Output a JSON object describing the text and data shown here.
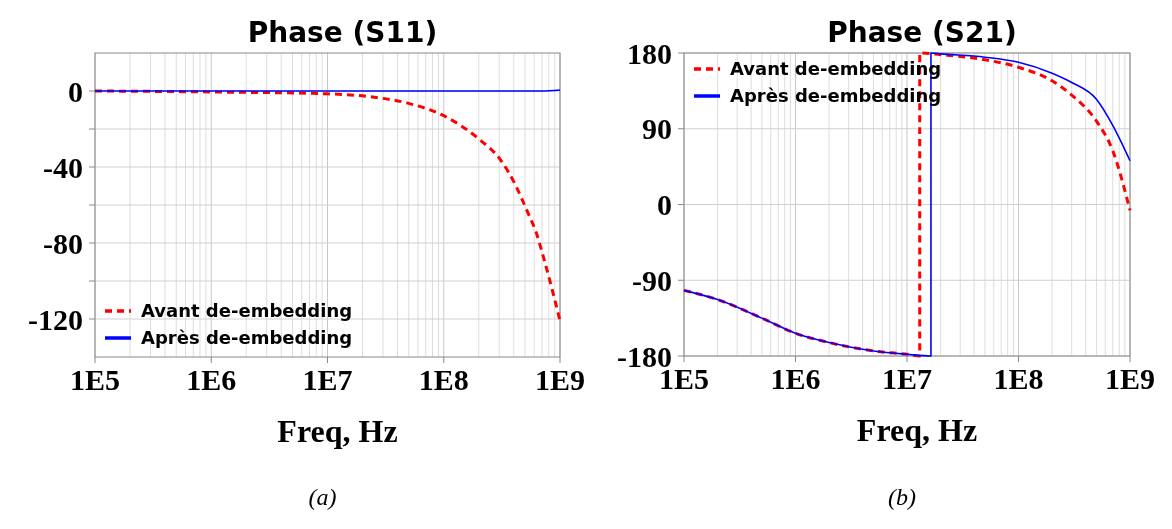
{
  "chart_data": [
    {
      "type": "line",
      "title": "Phase (S11)",
      "xlabel": "Freq, Hz",
      "log": "x",
      "xlim": [
        100000,
        1000000000
      ],
      "xticks": [
        {
          "value": 100000,
          "label": "1E5"
        },
        {
          "value": 1000000,
          "label": "1E6"
        },
        {
          "value": 10000000,
          "label": "1E7"
        },
        {
          "value": 100000000,
          "label": "1E8"
        },
        {
          "value": 1000000000,
          "label": "1E9"
        }
      ],
      "ylim": [
        -140,
        20
      ],
      "yticks": [
        0,
        {
          "value": -20,
          "label": null
        },
        -40,
        {
          "value": -60,
          "label": null
        },
        -80,
        {
          "value": -100,
          "label": null
        },
        -120
      ],
      "grid": true,
      "legend": "bottom left",
      "annotations": [
        "(a)"
      ],
      "series": [
        {
          "name": "Avant de-embedding",
          "color": "#ff0000",
          "line_style": "dashed",
          "x": [
            100000,
            1000000,
            10000000,
            23000000,
            49000000,
            100000000,
            198000000,
            310000000,
            410000000,
            520000000,
            620000000,
            740000000,
            860000000,
            1000000000
          ],
          "values": [
            0,
            -0.5,
            -1.5,
            -3,
            -6.4,
            -13,
            -25,
            -36.5,
            -49,
            -63,
            -74,
            -90,
            -105,
            -121
          ]
        },
        {
          "name": "Après de-embedding",
          "color": "#0000ff",
          "line_style": "solid",
          "x": [
            100000,
            1000000,
            10000000,
            100000000,
            700000000,
            1000000000
          ],
          "values": [
            0,
            0,
            0,
            0,
            0,
            0.5
          ]
        }
      ]
    },
    {
      "type": "line",
      "title": "Phase (S21)",
      "xlabel": "Freq, Hz",
      "log": "x",
      "xlim": [
        100000,
        1000000000
      ],
      "xticks": [
        {
          "value": 100000,
          "label": "1E5"
        },
        {
          "value": 1000000,
          "label": "1E6"
        },
        {
          "value": 10000000,
          "label": "1E7"
        },
        {
          "value": 100000000,
          "label": "1E8"
        },
        {
          "value": 1000000000,
          "label": "1E9"
        }
      ],
      "ylim": [
        -180,
        180
      ],
      "yticks": [
        -180,
        -90,
        0,
        90,
        180
      ],
      "grid": true,
      "legend": "top left",
      "annotations": [
        "(b)"
      ],
      "series": [
        {
          "name": "Avant de-embedding",
          "color": "#ff0000",
          "line_style": "dashed",
          "x": [
            100000,
            200000,
            500000,
            1000000,
            2000000,
            5000000,
            10000000,
            13000000,
            13000000,
            20000000,
            50000000,
            100000000,
            200000000,
            300000000,
            500000000,
            700000000,
            1000000000
          ],
          "values": [
            -102,
            -113,
            -135,
            -153,
            -164,
            -174,
            -178,
            -180,
            180,
            178,
            172,
            163,
            147,
            130,
            99,
            64,
            -7
          ]
        },
        {
          "name": "Après de-embedding",
          "color": "#0000ff",
          "line_style": "solid",
          "x": [
            100000,
            200000,
            500000,
            1000000,
            2000000,
            5000000,
            10000000,
            16400000,
            16400000,
            20000000,
            50000000,
            100000000,
            200000000,
            300000000,
            500000000,
            700000000,
            1000000000
          ],
          "values": [
            -102,
            -113,
            -135,
            -153,
            -164,
            -174,
            -178,
            -180,
            180,
            179,
            175,
            169,
            156,
            145,
            125,
            94,
            52
          ]
        }
      ]
    }
  ]
}
